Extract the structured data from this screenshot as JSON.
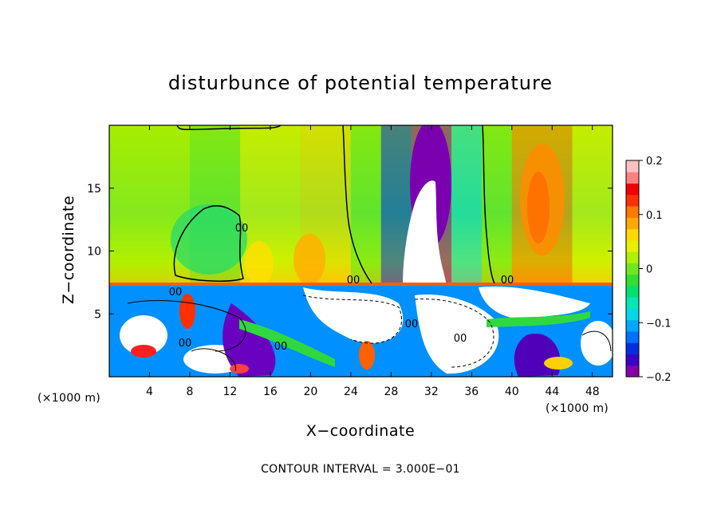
{
  "chart_data": {
    "type": "heatmap",
    "title": "disturbunce of potential temperature",
    "xlabel": "X−coordinate",
    "ylabel": "Z−coordinate",
    "x_unit_label": "(×1000 m)",
    "x_unit_label_right": "(×1000 m)",
    "footer": "CONTOUR INTERVAL = 3.000E−01",
    "xlim": [
      0,
      50
    ],
    "ylim": [
      0,
      20
    ],
    "x_ticks": [
      4,
      8,
      12,
      16,
      20,
      24,
      28,
      32,
      36,
      40,
      44,
      48
    ],
    "y_ticks": [
      5,
      10,
      15
    ],
    "colorbar": {
      "range": [
        -0.2,
        0.2
      ],
      "ticks": [
        {
          "value": 0.2,
          "label": "0.2"
        },
        {
          "value": 0.1,
          "label": "0.1"
        },
        {
          "value": 0,
          "label": "0"
        },
        {
          "value": -0.1,
          "label": "−0.1"
        },
        {
          "value": -0.2,
          "label": "−0.2"
        }
      ],
      "colors": [
        "#8800a8",
        "#3a00c8",
        "#0030e0",
        "#0070ff",
        "#00a8ff",
        "#00d8e8",
        "#00e8b8",
        "#00e070",
        "#30e030",
        "#70e820",
        "#b0f000",
        "#e8f000",
        "#ffd800",
        "#ffa800",
        "#ff7800",
        "#ff3000",
        "#f00000",
        "#ff8080",
        "#ffc0c0"
      ]
    },
    "upper_layer_boundary_z": 7.3,
    "upper_field_bands": [
      {
        "x": [
          0,
          8
        ],
        "value": 0.03
      },
      {
        "x": [
          8,
          13
        ],
        "value": 0.01
      },
      {
        "x": [
          13,
          19
        ],
        "value": 0.04
      },
      {
        "x": [
          19,
          24
        ],
        "value": 0.06
      },
      {
        "x": [
          24,
          27
        ],
        "value": 0.0
      },
      {
        "x": [
          27,
          30
        ],
        "value": -0.14
      },
      {
        "x": [
          30,
          34
        ],
        "value": -0.2
      },
      {
        "x": [
          34,
          37
        ],
        "value": -0.08
      },
      {
        "x": [
          37,
          40
        ],
        "value": 0.0
      },
      {
        "x": [
          40,
          46
        ],
        "value": 0.11
      },
      {
        "x": [
          46,
          50
        ],
        "value": 0.04
      }
    ],
    "contour_labels": [
      "00",
      "00",
      "00",
      "00",
      "00",
      "00",
      "00",
      "00"
    ]
  }
}
